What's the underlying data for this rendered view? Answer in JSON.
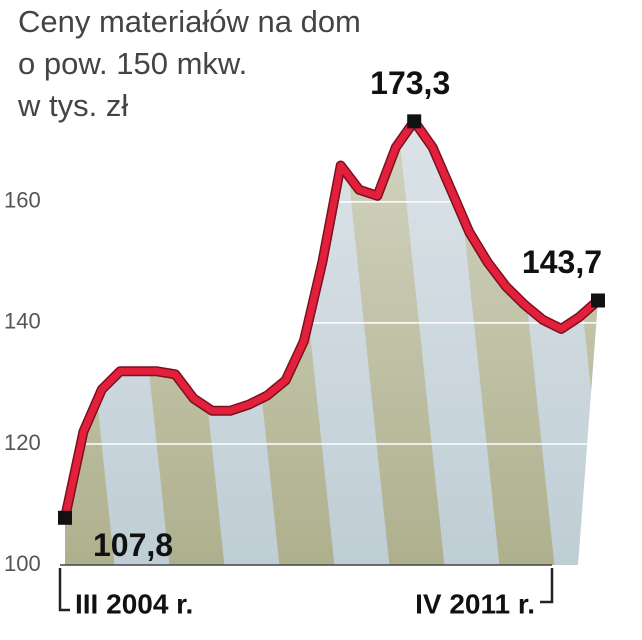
{
  "chart_data": {
    "type": "line",
    "title": [
      "Ceny materiałów na dom",
      "o pow. 150 mkw.",
      "w tys. zł"
    ],
    "categories": [
      "III 2004 r.",
      null,
      null,
      null,
      null,
      null,
      null,
      null,
      null,
      null,
      null,
      null,
      null,
      null,
      null,
      null,
      null,
      null,
      null,
      null,
      null,
      null,
      null,
      null,
      null,
      null,
      null,
      null,
      null,
      "IV 2011 r."
    ],
    "values": [
      107.8,
      122,
      129,
      132,
      132,
      132,
      131.5,
      127.5,
      125.5,
      125.5,
      126.5,
      128,
      130.5,
      137,
      150,
      166,
      162,
      161,
      169,
      173.3,
      169,
      162,
      155,
      150,
      146,
      143,
      140.5,
      139,
      141,
      143.7
    ],
    "value_labels": [
      "107,8",
      null,
      null,
      null,
      null,
      null,
      null,
      null,
      null,
      null,
      null,
      null,
      null,
      null,
      null,
      null,
      null,
      null,
      null,
      "173,3",
      null,
      null,
      null,
      null,
      null,
      null,
      null,
      null,
      null,
      "143,7"
    ],
    "color": "#e2203c",
    "ylim": [
      100,
      176
    ],
    "yticks": [
      100,
      120,
      140,
      160
    ],
    "grid": true
  }
}
